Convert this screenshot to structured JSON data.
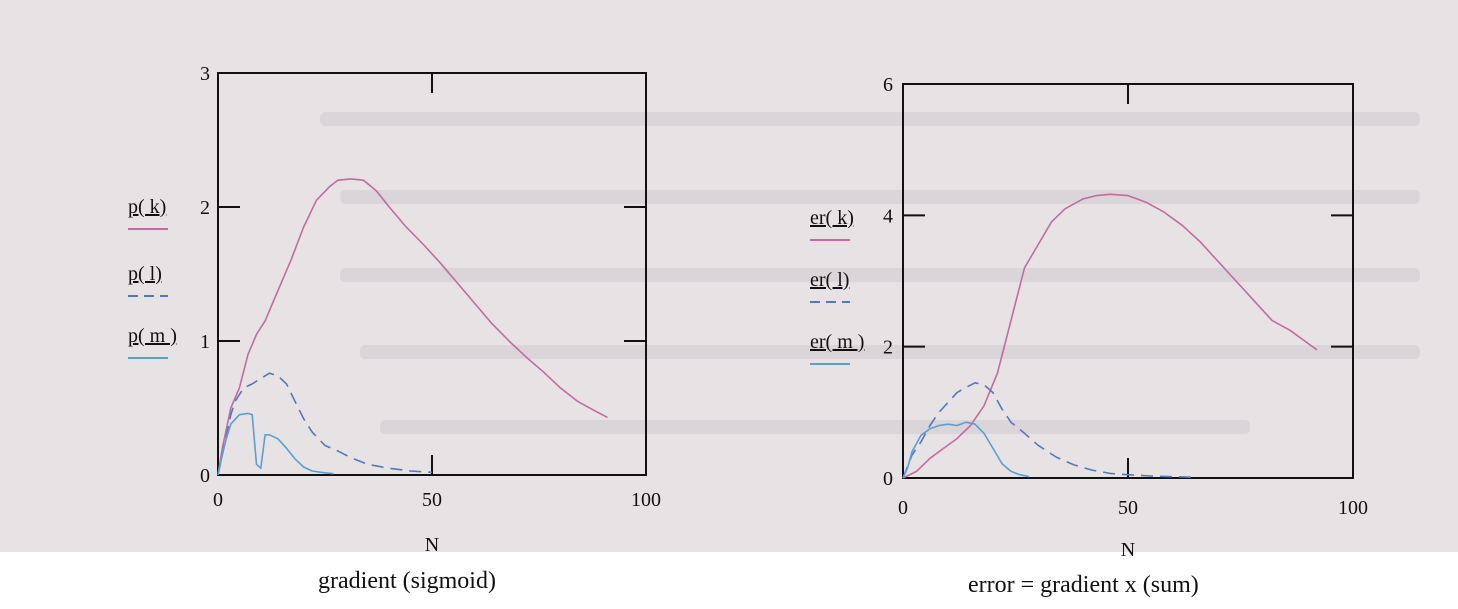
{
  "background_color": "#e7e3e4",
  "captions": {
    "left": "gradient (sigmoid)",
    "right": "error = gradient x (sum)"
  },
  "chart_data": [
    {
      "type": "line",
      "xlabel": "N",
      "xlim": [
        0,
        100
      ],
      "ylim": [
        0,
        3
      ],
      "x_ticks": [
        "0",
        "50",
        "100"
      ],
      "y_ticks": [
        "0",
        "1",
        "2",
        "3"
      ],
      "legend_position": "left",
      "series": [
        {
          "name": "p( k)",
          "color": "#c46a9e",
          "dash": "solid",
          "points": [
            [
              0,
              0
            ],
            [
              1,
              0.2
            ],
            [
              2,
              0.35
            ],
            [
              3,
              0.5
            ],
            [
              5,
              0.65
            ],
            [
              7,
              0.9
            ],
            [
              9,
              1.05
            ],
            [
              11,
              1.15
            ],
            [
              13,
              1.3
            ],
            [
              15,
              1.45
            ],
            [
              17,
              1.6
            ],
            [
              20,
              1.85
            ],
            [
              23,
              2.05
            ],
            [
              26,
              2.15
            ],
            [
              28,
              2.2
            ],
            [
              31,
              2.21
            ],
            [
              34,
              2.2
            ],
            [
              37,
              2.12
            ],
            [
              40,
              2.0
            ],
            [
              44,
              1.85
            ],
            [
              48,
              1.72
            ],
            [
              52,
              1.58
            ],
            [
              56,
              1.43
            ],
            [
              60,
              1.28
            ],
            [
              64,
              1.13
            ],
            [
              68,
              1.0
            ],
            [
              72,
              0.88
            ],
            [
              76,
              0.77
            ],
            [
              80,
              0.65
            ],
            [
              84,
              0.55
            ],
            [
              88,
              0.48
            ],
            [
              91,
              0.43
            ]
          ]
        },
        {
          "name": "p( l)",
          "color": "#5577bb",
          "dash": "dashed",
          "points": [
            [
              0,
              0
            ],
            [
              1,
              0.15
            ],
            [
              2,
              0.3
            ],
            [
              3,
              0.45
            ],
            [
              4,
              0.55
            ],
            [
              6,
              0.65
            ],
            [
              8,
              0.68
            ],
            [
              10,
              0.72
            ],
            [
              12,
              0.76
            ],
            [
              14,
              0.74
            ],
            [
              16,
              0.68
            ],
            [
              18,
              0.55
            ],
            [
              20,
              0.42
            ],
            [
              22,
              0.32
            ],
            [
              25,
              0.22
            ],
            [
              28,
              0.18
            ],
            [
              31,
              0.13
            ],
            [
              35,
              0.08
            ],
            [
              40,
              0.05
            ],
            [
              45,
              0.03
            ],
            [
              50,
              0.02
            ]
          ]
        },
        {
          "name": "p( m )",
          "color": "#5a9fd4",
          "dash": "solid",
          "points": [
            [
              0,
              0
            ],
            [
              1,
              0.15
            ],
            [
              2,
              0.28
            ],
            [
              3,
              0.38
            ],
            [
              5,
              0.45
            ],
            [
              7,
              0.46
            ],
            [
              8,
              0.45
            ],
            [
              9,
              0.08
            ],
            [
              10,
              0.05
            ],
            [
              11,
              0.3
            ],
            [
              12,
              0.3
            ],
            [
              14,
              0.27
            ],
            [
              16,
              0.2
            ],
            [
              18,
              0.12
            ],
            [
              20,
              0.06
            ],
            [
              22,
              0.03
            ],
            [
              24,
              0.02
            ],
            [
              27,
              0.01
            ]
          ]
        }
      ]
    },
    {
      "type": "line",
      "xlabel": "N",
      "xlim": [
        0,
        100
      ],
      "ylim": [
        0,
        6
      ],
      "x_ticks": [
        "0",
        "50",
        "100"
      ],
      "y_ticks": [
        "0",
        "2",
        "4",
        "6"
      ],
      "legend_position": "left",
      "series": [
        {
          "name": "er( k)",
          "color": "#c46a9e",
          "dash": "solid",
          "points": [
            [
              0,
              0
            ],
            [
              3,
              0.1
            ],
            [
              6,
              0.3
            ],
            [
              9,
              0.45
            ],
            [
              12,
              0.6
            ],
            [
              15,
              0.8
            ],
            [
              18,
              1.1
            ],
            [
              21,
              1.6
            ],
            [
              24,
              2.4
            ],
            [
              27,
              3.2
            ],
            [
              30,
              3.55
            ],
            [
              33,
              3.9
            ],
            [
              36,
              4.1
            ],
            [
              40,
              4.25
            ],
            [
              43,
              4.3
            ],
            [
              46,
              4.32
            ],
            [
              50,
              4.3
            ],
            [
              54,
              4.2
            ],
            [
              58,
              4.05
            ],
            [
              62,
              3.85
            ],
            [
              66,
              3.6
            ],
            [
              70,
              3.3
            ],
            [
              74,
              3.0
            ],
            [
              78,
              2.7
            ],
            [
              82,
              2.4
            ],
            [
              86,
              2.25
            ],
            [
              90,
              2.05
            ],
            [
              92,
              1.95
            ]
          ]
        },
        {
          "name": "er( l)",
          "color": "#5577bb",
          "dash": "dashed",
          "points": [
            [
              0,
              0
            ],
            [
              2,
              0.35
            ],
            [
              4,
              0.55
            ],
            [
              6,
              0.8
            ],
            [
              8,
              1.0
            ],
            [
              10,
              1.15
            ],
            [
              12,
              1.3
            ],
            [
              14,
              1.38
            ],
            [
              16,
              1.45
            ],
            [
              18,
              1.42
            ],
            [
              20,
              1.3
            ],
            [
              22,
              1.05
            ],
            [
              24,
              0.85
            ],
            [
              27,
              0.68
            ],
            [
              30,
              0.5
            ],
            [
              34,
              0.32
            ],
            [
              38,
              0.2
            ],
            [
              42,
              0.12
            ],
            [
              46,
              0.07
            ],
            [
              50,
              0.05
            ],
            [
              55,
              0.03
            ],
            [
              60,
              0.02
            ],
            [
              65,
              0.01
            ]
          ]
        },
        {
          "name": "er( m )",
          "color": "#5a9fd4",
          "dash": "solid",
          "points": [
            [
              0,
              0
            ],
            [
              1,
              0.15
            ],
            [
              2,
              0.4
            ],
            [
              4,
              0.65
            ],
            [
              6,
              0.75
            ],
            [
              8,
              0.8
            ],
            [
              10,
              0.82
            ],
            [
              12,
              0.8
            ],
            [
              14,
              0.85
            ],
            [
              16,
              0.82
            ],
            [
              18,
              0.68
            ],
            [
              20,
              0.45
            ],
            [
              22,
              0.22
            ],
            [
              24,
              0.1
            ],
            [
              26,
              0.05
            ],
            [
              28,
              0.02
            ]
          ]
        }
      ]
    }
  ]
}
